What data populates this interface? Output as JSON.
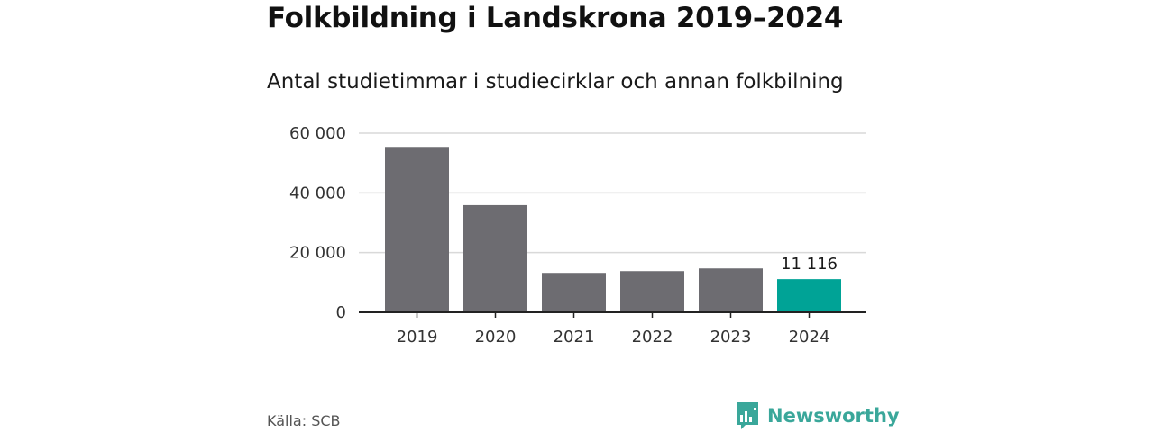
{
  "title": "Folkbildning i Landskrona 2019–2024",
  "subtitle": "Antal studietimmar i studiecirklar och annan folkbilning",
  "source": "Källa: SCB",
  "brand": {
    "name": "Newsworthy",
    "icon": "newsworthy-bar-chart-logo-icon"
  },
  "colors": {
    "bar": "#6d6c71",
    "highlight": "#00a396",
    "gridline": "#d9d9d9",
    "baseline": "#222222",
    "brand": "#3aa79a"
  },
  "chart_data": {
    "type": "bar",
    "categories": [
      "2019",
      "2020",
      "2021",
      "2022",
      "2023",
      "2024"
    ],
    "values": [
      55400,
      35900,
      13200,
      13800,
      14700,
      11116
    ],
    "highlight_index": 5,
    "data_labels": [
      {
        "index": 5,
        "text": "11 116"
      }
    ],
    "ylim": [
      0,
      60000
    ],
    "yticks": [
      0,
      20000,
      40000,
      60000
    ],
    "ytick_labels": [
      "0",
      "20 000",
      "40 000",
      "60 000"
    ],
    "grid": true,
    "legend": "none",
    "xlabel": "",
    "ylabel": ""
  }
}
